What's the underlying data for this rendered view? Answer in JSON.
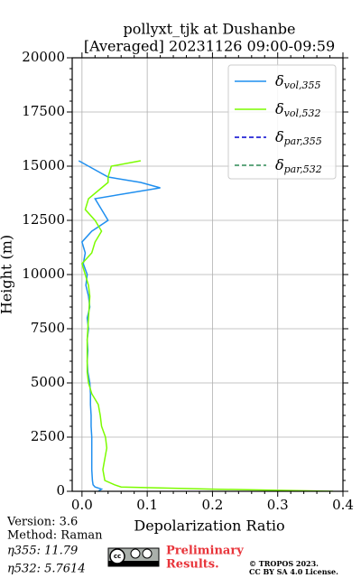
{
  "chart_data": {
    "type": "profile",
    "title": [
      "pollyxt_tjk at Dushanbe",
      "[Averaged] 20231126 09:00-09:59"
    ],
    "x_label": "Depolarization Ratio",
    "y_label": "Height (m)",
    "xlim": [
      -0.015,
      0.4
    ],
    "xticks": [
      {
        "value": 0,
        "label": "0.0"
      },
      0.1,
      0.2,
      0.3,
      0.4
    ],
    "ylim": [
      0,
      20000
    ],
    "yticks": [
      0,
      2500,
      5000,
      7500,
      10000,
      12500,
      15000,
      17500,
      20000
    ],
    "grid": true,
    "legend": "upper right",
    "y": [
      0,
      100,
      200,
      300,
      500,
      1000,
      1500,
      2000,
      2500,
      3000,
      3500,
      4000,
      4500,
      5000,
      5500,
      6000,
      6500,
      7000,
      7500,
      8000,
      8500,
      9000,
      9500,
      10000,
      10500,
      11000,
      11500,
      12000,
      12500,
      13000,
      13500,
      14000,
      14250,
      14500,
      15000,
      15250
    ],
    "series": [
      {
        "name": "δvol,355",
        "color": "#1f8fef",
        "linestyle": "solid",
        "values": [
          0.025,
          0.03,
          0.02,
          0.017,
          0.016,
          0.015,
          0.015,
          0.015,
          0.015,
          0.014,
          0.014,
          0.013,
          0.013,
          0.012,
          0.009,
          0.008,
          0.009,
          0.008,
          0.01,
          0.008,
          0.012,
          0.01,
          0.006,
          0.008,
          0.002,
          0.005,
          0.0,
          0.015,
          0.04,
          0.03,
          0.02,
          0.12,
          0.09,
          0.04,
          0.01,
          -0.005
        ]
      },
      {
        "name": "δvol,532",
        "color": "#7cfc00",
        "linestyle": "solid",
        "values": [
          0.385,
          0.2,
          0.06,
          0.05,
          0.035,
          0.032,
          0.035,
          0.038,
          0.036,
          0.03,
          0.028,
          0.025,
          0.015,
          0.01,
          0.008,
          0.008,
          0.008,
          0.008,
          0.009,
          0.01,
          0.011,
          0.012,
          0.01,
          0.005,
          0.0,
          0.015,
          0.02,
          0.03,
          0.02,
          0.005,
          0.01,
          0.03,
          0.04,
          0.04,
          0.045,
          0.09
        ]
      },
      {
        "name": "δpar,355",
        "color": "#0000cd",
        "linestyle": "dashed",
        "values": [
          null,
          null,
          null,
          null,
          null,
          null,
          null,
          null,
          null,
          null,
          null,
          null,
          null,
          null,
          null,
          null,
          null,
          null,
          null,
          null,
          null,
          null,
          null,
          null,
          null,
          null,
          null,
          null,
          null,
          null,
          null,
          null,
          null,
          null,
          null,
          null
        ]
      },
      {
        "name": "δpar,532",
        "color": "#2e8b57",
        "linestyle": "dashed",
        "values": [
          null,
          null,
          null,
          null,
          null,
          null,
          null,
          null,
          null,
          null,
          null,
          null,
          null,
          null,
          null,
          null,
          null,
          null,
          null,
          null,
          null,
          null,
          null,
          null,
          null,
          null,
          null,
          null,
          null,
          null,
          null,
          null,
          null,
          null,
          null,
          null
        ]
      }
    ]
  },
  "footer": {
    "version": "Version: 3.6",
    "method": "Method: Raman",
    "eta355": "η355:  11.79",
    "eta532": "η532: 5.7614",
    "preliminary": [
      "Preliminary",
      "Results."
    ],
    "copyright": [
      "© TROPOS 2023.",
      "CC BY SA 4.0 License."
    ]
  }
}
